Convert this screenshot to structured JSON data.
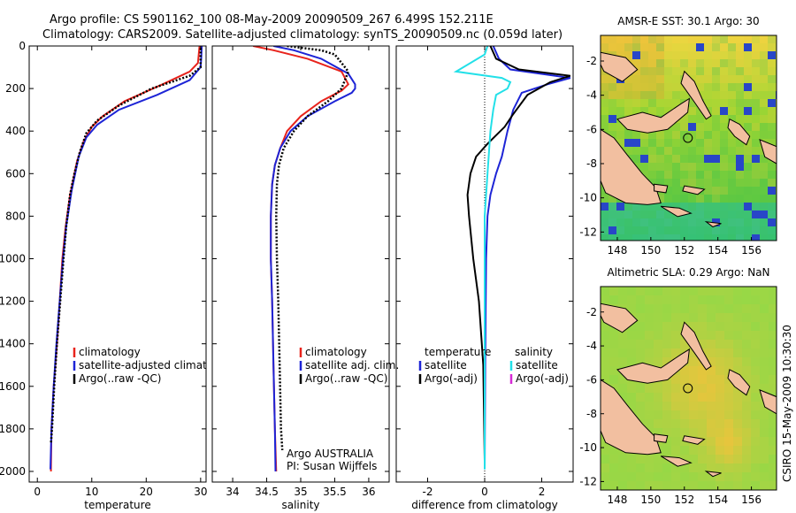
{
  "header": {
    "line1": "Argo profile: CS 5901162_100 08-May-2009 20090509_267 6.499S 152.211E",
    "line2": "Climatology: CARS2009. Satellite-adjusted climatology: synTS_20090509.nc (0.059d later)"
  },
  "side_label": "CSIRO 15-May-2009 10:30:30",
  "colors": {
    "clim": "#e8231c",
    "sat": "#1d24d6",
    "argo": "#000000",
    "cyan": "#22e0e8",
    "magenta": "#d62ad6",
    "land": "#f2bfa0"
  },
  "chart_data": [
    {
      "type": "line",
      "xlabel": "temperature",
      "ylim": [
        0,
        2050
      ],
      "y_reversed": true,
      "xlim": [
        -1.5,
        31
      ],
      "xticks": [
        0,
        10,
        20,
        30
      ],
      "yticks": [
        0,
        200,
        400,
        600,
        800,
        1000,
        1200,
        1400,
        1600,
        1800,
        2000
      ],
      "legend": [
        "climatology",
        "satellite-adjusted climatology",
        "Argo(..raw -QC)"
      ],
      "series": [
        {
          "name": "climatology",
          "color": "clim",
          "points": [
            [
              29.8,
              0
            ],
            [
              29.5,
              80
            ],
            [
              28,
              120
            ],
            [
              23,
              180
            ],
            [
              16,
              260
            ],
            [
              12,
              330
            ],
            [
              10,
              380
            ],
            [
              8.5,
              450
            ],
            [
              7.3,
              540
            ],
            [
              6,
              700
            ],
            [
              5.2,
              850
            ],
            [
              4.6,
              1000
            ],
            [
              4.1,
              1200
            ],
            [
              3.6,
              1400
            ],
            [
              3,
              1600
            ],
            [
              2.6,
              1800
            ],
            [
              2.5,
              2000
            ]
          ]
        },
        {
          "name": "satellite-adjusted climatology",
          "color": "sat",
          "points": [
            [
              30.2,
              0
            ],
            [
              30.1,
              60
            ],
            [
              30,
              100
            ],
            [
              28,
              160
            ],
            [
              22,
              230
            ],
            [
              15,
              300
            ],
            [
              11,
              370
            ],
            [
              9,
              430
            ],
            [
              7.6,
              520
            ],
            [
              6.3,
              680
            ],
            [
              5.3,
              850
            ],
            [
              4.7,
              1000
            ],
            [
              4.1,
              1200
            ],
            [
              3.5,
              1400
            ],
            [
              3,
              1600
            ],
            [
              2.6,
              1800
            ],
            [
              2.4,
              1990
            ]
          ]
        },
        {
          "name": "Argo(..raw -QC)",
          "color": "argo",
          "dashed": true,
          "points": [
            [
              30,
              10
            ],
            [
              30,
              100
            ],
            [
              28,
              140
            ],
            [
              21,
              200
            ],
            [
              15,
              280
            ],
            [
              11,
              350
            ],
            [
              9,
              410
            ],
            [
              7.8,
              500
            ],
            [
              6.8,
              600
            ],
            [
              6,
              700
            ],
            [
              5.3,
              850
            ],
            [
              4.8,
              1000
            ],
            [
              4.2,
              1200
            ],
            [
              3.6,
              1400
            ],
            [
              3.1,
              1600
            ],
            [
              2.7,
              1800
            ],
            [
              2.5,
              1870
            ]
          ]
        }
      ]
    },
    {
      "type": "line",
      "xlabel": "salinity",
      "ylim": [
        0,
        2050
      ],
      "y_reversed": true,
      "xlim": [
        33.7,
        36.3
      ],
      "xticks": [
        34,
        34.5,
        35,
        35.5,
        36
      ],
      "yticks": [
        0,
        200,
        400,
        600,
        800,
        1000,
        1200,
        1400,
        1600,
        1800,
        2000
      ],
      "legend": [
        "climatology",
        "satellite adj. clim.",
        "Argo(..raw -QC)"
      ],
      "annotations": [
        "Argo AUSTRALIA",
        "PI: Susan Wijffels"
      ],
      "series": [
        {
          "name": "climatology",
          "color": "clim",
          "points": [
            [
              34.3,
              0
            ],
            [
              34.6,
              20
            ],
            [
              35.1,
              60
            ],
            [
              35.6,
              120
            ],
            [
              35.7,
              180
            ],
            [
              35.6,
              210
            ],
            [
              35.3,
              260
            ],
            [
              35,
              330
            ],
            [
              34.8,
              400
            ],
            [
              34.7,
              480
            ],
            [
              34.62,
              560
            ],
            [
              34.58,
              650
            ],
            [
              34.56,
              800
            ],
            [
              34.56,
              1000
            ],
            [
              34.58,
              1200
            ],
            [
              34.6,
              1500
            ],
            [
              34.62,
              1800
            ],
            [
              34.64,
              2000
            ]
          ]
        },
        {
          "name": "satellite adj. clim.",
          "color": "sat",
          "points": [
            [
              34.6,
              0
            ],
            [
              34.9,
              20
            ],
            [
              35.3,
              60
            ],
            [
              35.7,
              130
            ],
            [
              35.8,
              180
            ],
            [
              35.8,
              200
            ],
            [
              35.75,
              220
            ],
            [
              35.5,
              260
            ],
            [
              35.1,
              330
            ],
            [
              34.85,
              400
            ],
            [
              34.7,
              480
            ],
            [
              34.62,
              560
            ],
            [
              34.58,
              650
            ],
            [
              34.56,
              800
            ],
            [
              34.56,
              1000
            ],
            [
              34.58,
              1200
            ],
            [
              34.6,
              1500
            ],
            [
              34.62,
              1800
            ],
            [
              34.63,
              2000
            ]
          ]
        },
        {
          "name": "Argo(..raw -QC)",
          "color": "argo",
          "dashed": true,
          "points": [
            [
              34.8,
              0
            ],
            [
              35.3,
              20
            ],
            [
              35.5,
              40
            ],
            [
              35.6,
              80
            ],
            [
              35.7,
              120
            ],
            [
              35.65,
              160
            ],
            [
              35.6,
              200
            ],
            [
              35.4,
              260
            ],
            [
              35.1,
              330
            ],
            [
              34.9,
              400
            ],
            [
              34.75,
              480
            ],
            [
              34.68,
              560
            ],
            [
              34.65,
              650
            ],
            [
              34.64,
              800
            ],
            [
              34.65,
              1000
            ],
            [
              34.67,
              1200
            ],
            [
              34.69,
              1500
            ],
            [
              34.71,
              1800
            ],
            [
              34.73,
              1900
            ]
          ]
        }
      ]
    },
    {
      "type": "line",
      "xlabel": "difference from climatology",
      "ylim": [
        0,
        2050
      ],
      "y_reversed": true,
      "xlim": [
        -3.1,
        3.1
      ],
      "xticks": [
        -2,
        0,
        2
      ],
      "yticks": [
        0,
        200,
        400,
        600,
        800,
        1000,
        1200,
        1400,
        1600,
        1800,
        2000
      ],
      "legend_headers": [
        "temperature",
        "salinity"
      ],
      "legend": [
        "satellite",
        "Argo(-adj)",
        "satellite",
        "Argo(-adj)"
      ],
      "series": [
        {
          "name": "satellite (temperature)",
          "color": "sat",
          "points": [
            [
              0.3,
              0
            ],
            [
              0.5,
              60
            ],
            [
              0.9,
              110
            ],
            [
              3,
              150
            ],
            [
              2.2,
              180
            ],
            [
              1.3,
              220
            ],
            [
              1,
              300
            ],
            [
              0.8,
              400
            ],
            [
              0.6,
              520
            ],
            [
              0.4,
              600
            ],
            [
              0.2,
              700
            ],
            [
              0.1,
              800
            ],
            [
              0.05,
              1000
            ],
            [
              0.02,
              1500
            ],
            [
              0,
              1990
            ]
          ]
        },
        {
          "name": "Argo(-adj) (temperature)",
          "color": "argo",
          "points": [
            [
              0.2,
              0
            ],
            [
              0.4,
              60
            ],
            [
              1.2,
              110
            ],
            [
              3,
              140
            ],
            [
              2.3,
              170
            ],
            [
              1.5,
              230
            ],
            [
              1,
              320
            ],
            [
              0.7,
              380
            ],
            [
              0.1,
              460
            ],
            [
              -0.3,
              520
            ],
            [
              -0.5,
              600
            ],
            [
              -0.6,
              700
            ],
            [
              -0.55,
              800
            ],
            [
              -0.4,
              1000
            ],
            [
              -0.2,
              1200
            ],
            [
              -0.05,
              1500
            ],
            [
              0,
              1950
            ]
          ]
        },
        {
          "name": "satellite (salinity)",
          "color": "cyan",
          "points": [
            [
              0.1,
              0
            ],
            [
              0,
              40
            ],
            [
              -1,
              120
            ],
            [
              0.6,
              150
            ],
            [
              0.9,
              170
            ],
            [
              0.8,
              200
            ],
            [
              0.4,
              230
            ],
            [
              0.3,
              300
            ],
            [
              0.2,
              400
            ],
            [
              0.1,
              600
            ],
            [
              0,
              800
            ],
            [
              0,
              1200
            ],
            [
              0,
              1600
            ],
            [
              0,
              1990
            ]
          ]
        }
      ]
    },
    {
      "type": "heatmap",
      "title": "AMSR-E SST: 30.1  Argo: 30",
      "xlim": [
        147,
        157.5
      ],
      "ylim": [
        -12.5,
        -0.5
      ],
      "xticks": [
        148,
        150,
        152,
        154,
        156
      ],
      "yticks": [
        -2,
        -4,
        -6,
        -8,
        -10,
        -12
      ],
      "argo_position": [
        152.211,
        -6.499
      ]
    },
    {
      "type": "heatmap",
      "title": "Altimetric SLA: 0.29  Argo: NaN",
      "xlim": [
        147,
        157.5
      ],
      "ylim": [
        -12.5,
        -0.5
      ],
      "xticks": [
        148,
        150,
        152,
        154,
        156
      ],
      "yticks": [
        -2,
        -4,
        -6,
        -8,
        -10,
        -12
      ],
      "argo_position": [
        152.211,
        -6.499
      ]
    }
  ]
}
